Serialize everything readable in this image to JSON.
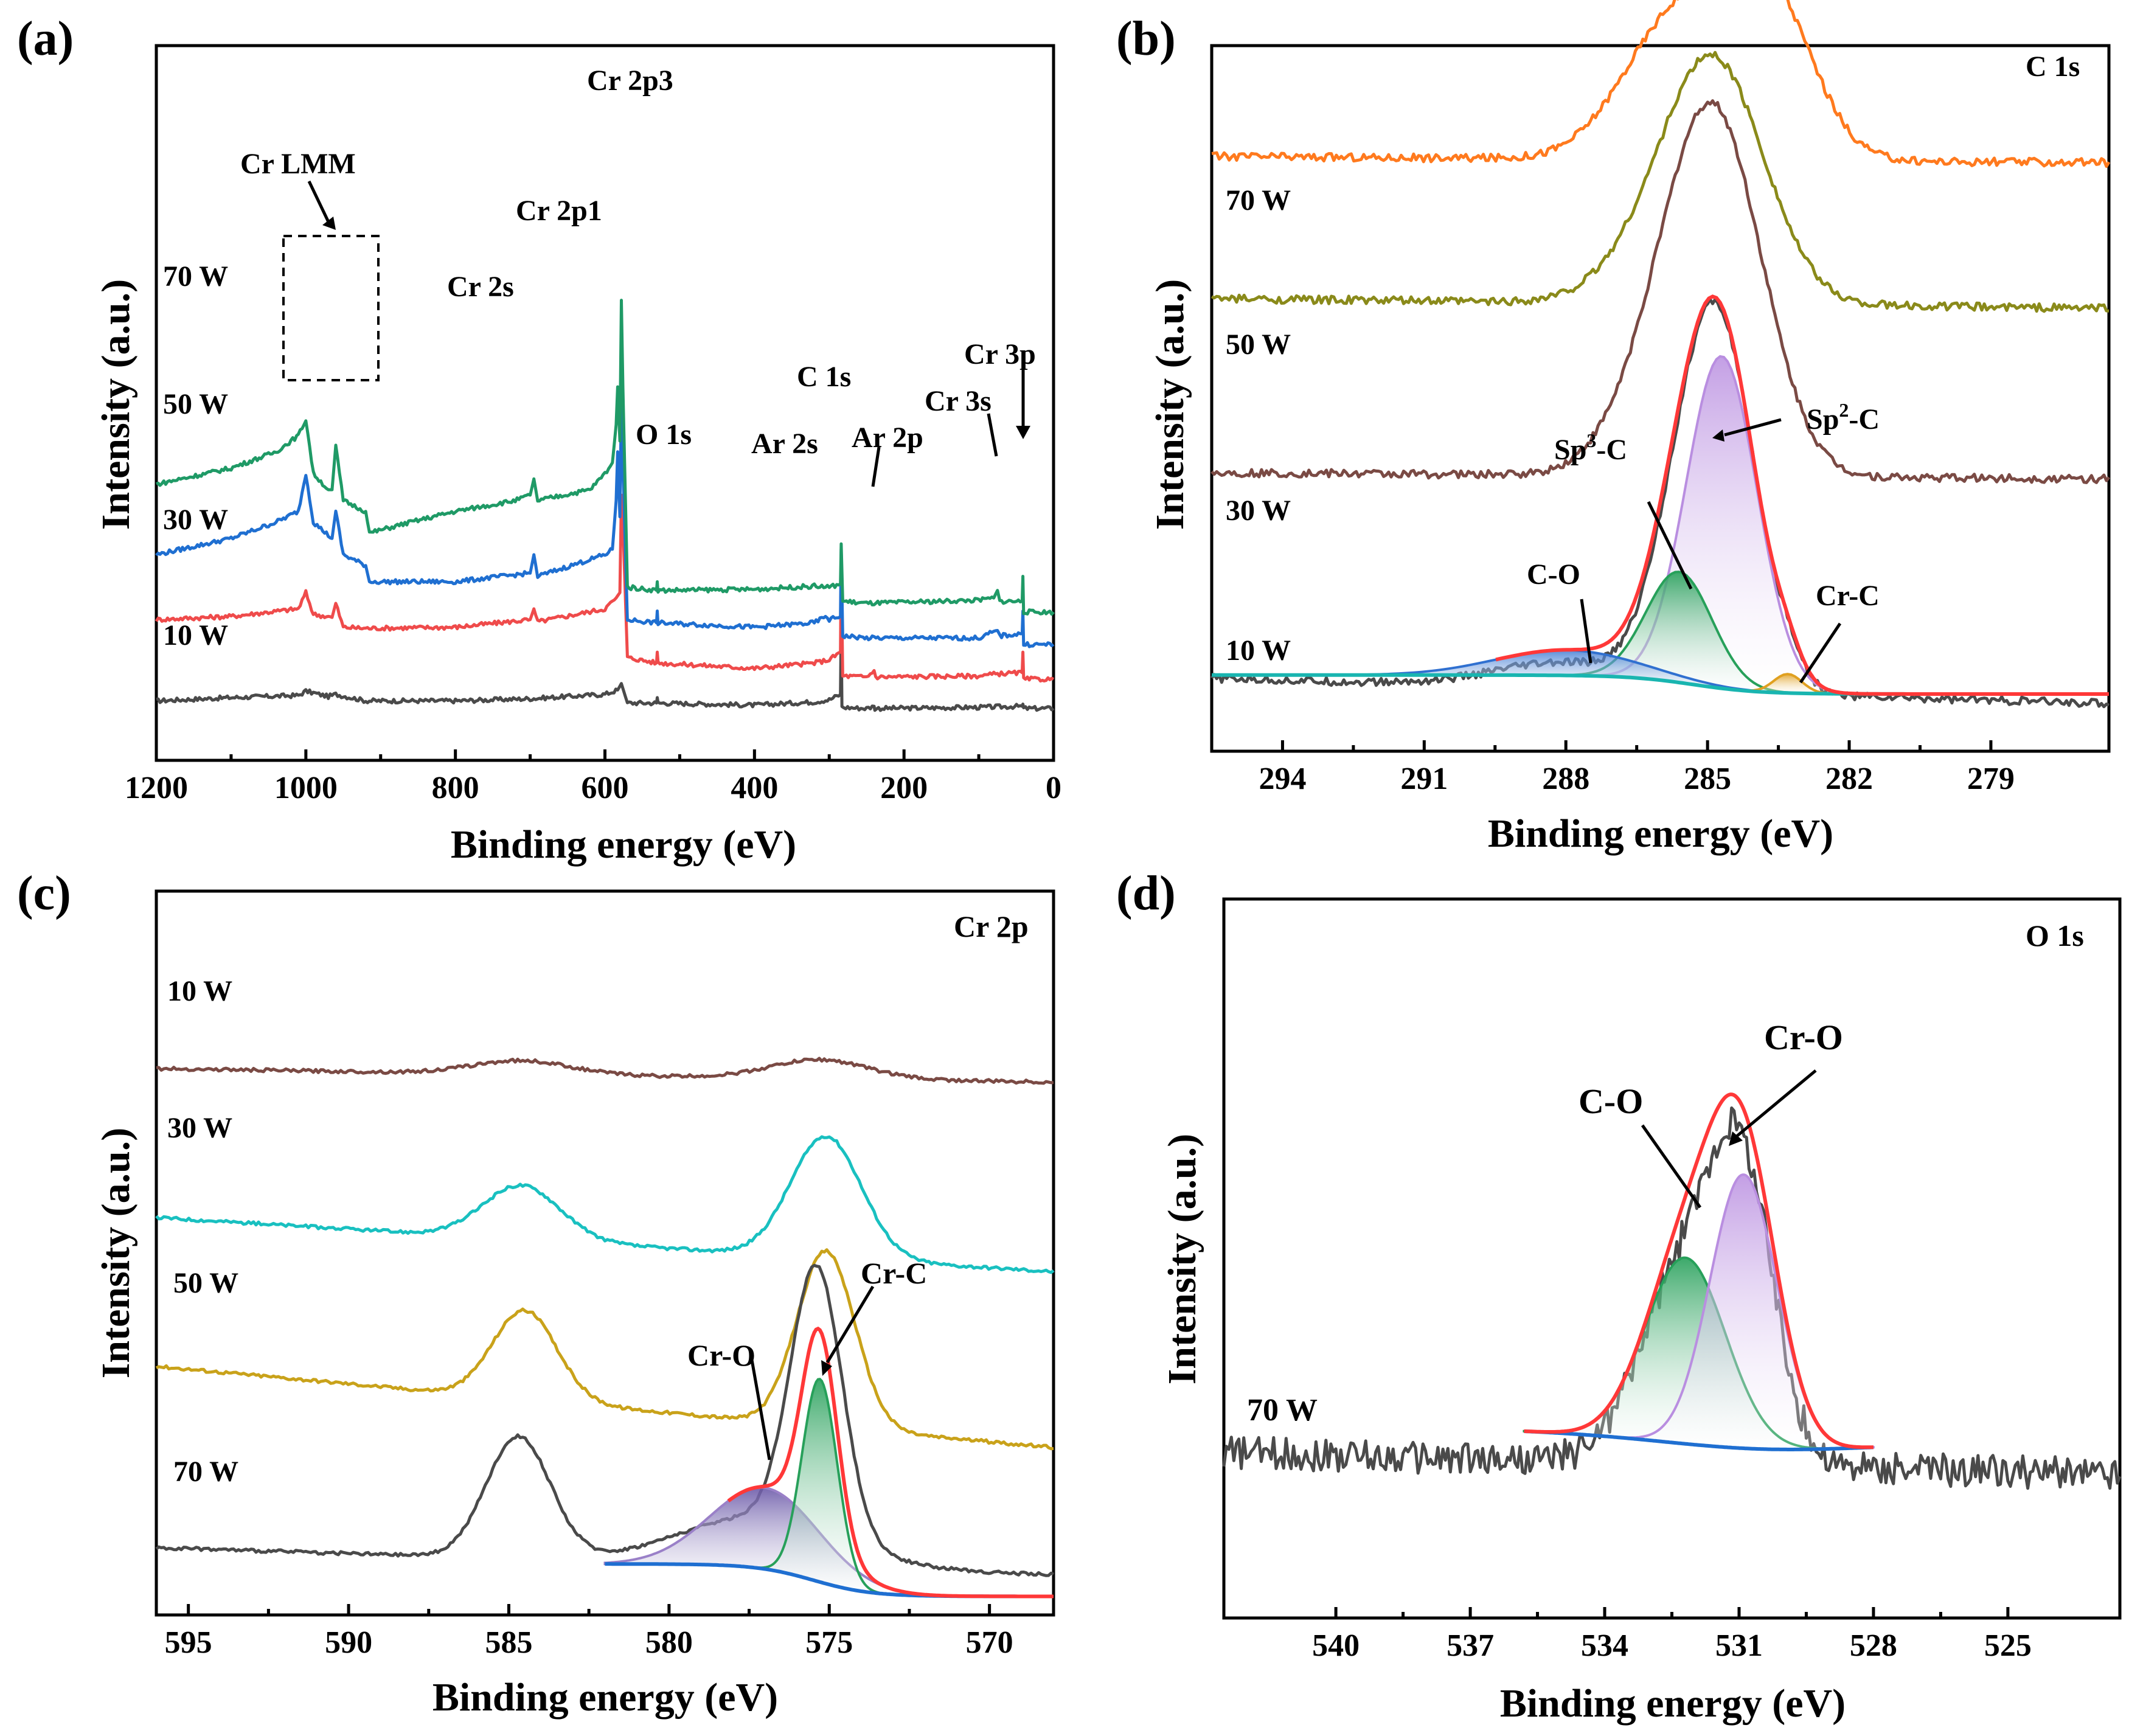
{
  "chart_data": [
    {
      "panel": "(a)",
      "type": "line",
      "title": "",
      "xlabel": "Binding energy (eV)",
      "ylabel": "Intensity (a.u.)",
      "xlim": [
        1200,
        0
      ],
      "xticks": [
        "1200",
        "1000",
        "800",
        "600",
        "400",
        "200",
        "0"
      ],
      "series": [
        {
          "name": "10 W",
          "color": "#4a4a4a",
          "points": [
            [
              1200,
              0.1
            ],
            [
              1100,
              0.13
            ],
            [
              1010,
              0.15
            ],
            [
              1000,
              0.19
            ],
            [
              970,
              0.14
            ],
            [
              960,
              0.16
            ],
            [
              920,
              0.1
            ],
            [
              800,
              0.1
            ],
            [
              700,
              0.12
            ],
            [
              600,
              0.16
            ],
            [
              583,
              0.2
            ],
            [
              578,
              0.26
            ],
            [
              570,
              0.08
            ],
            [
              531,
              0.08
            ],
            [
              530,
              0.13
            ],
            [
              529,
              0.08
            ],
            [
              400,
              0.06
            ],
            [
              320,
              0.09
            ],
            [
              300,
              0.11
            ],
            [
              285,
              0.16
            ],
            [
              284,
              0.8
            ],
            [
              283,
              0.04
            ],
            [
              250,
              0.03
            ],
            [
              240,
              0.05
            ],
            [
              239,
              0.03
            ],
            [
              100,
              0.04
            ],
            [
              42,
              0.05
            ],
            [
              41,
              0.07
            ],
            [
              40,
              0.03
            ],
            [
              0,
              0.03
            ]
          ]
        },
        {
          "name": "30 W",
          "color": "#ef4b4b",
          "points": [
            [
              1200,
              0.85
            ],
            [
              1100,
              0.88
            ],
            [
              1010,
              0.95
            ],
            [
              1000,
              1.1
            ],
            [
              990,
              0.9
            ],
            [
              965,
              0.87
            ],
            [
              960,
              1.0
            ],
            [
              950,
              0.78
            ],
            [
              920,
              0.77
            ],
            [
              800,
              0.78
            ],
            [
              700,
              0.85
            ],
            [
              695,
              0.95
            ],
            [
              690,
              0.83
            ],
            [
              600,
              0.95
            ],
            [
              585,
              1.05
            ],
            [
              580,
              1.1
            ],
            [
              578,
              2.0
            ],
            [
              575,
              1.55
            ],
            [
              570,
              0.5
            ],
            [
              531,
              0.45
            ],
            [
              530,
              0.55
            ],
            [
              529,
              0.45
            ],
            [
              400,
              0.4
            ],
            [
              320,
              0.45
            ],
            [
              300,
              0.48
            ],
            [
              285,
              0.55
            ],
            [
              284,
              1.4
            ],
            [
              282,
              0.33
            ],
            [
              250,
              0.32
            ],
            [
              240,
              0.38
            ],
            [
              238,
              0.32
            ],
            [
              100,
              0.33
            ],
            [
              75,
              0.35
            ],
            [
              42,
              0.36
            ],
            [
              41,
              0.55
            ],
            [
              40,
              0.3
            ],
            [
              0,
              0.3
            ]
          ]
        },
        {
          "name": "50 W",
          "color": "#1f6fd1",
          "points": [
            [
              1200,
              1.45
            ],
            [
              1100,
              1.6
            ],
            [
              1040,
              1.75
            ],
            [
              1010,
              1.85
            ],
            [
              1000,
              2.2
            ],
            [
              990,
              1.75
            ],
            [
              965,
              1.6
            ],
            [
              960,
              1.85
            ],
            [
              950,
              1.45
            ],
            [
              920,
              1.35
            ],
            [
              915,
              1.2
            ],
            [
              800,
              1.2
            ],
            [
              700,
              1.28
            ],
            [
              695,
              1.45
            ],
            [
              690,
              1.25
            ],
            [
              600,
              1.45
            ],
            [
              590,
              1.5
            ],
            [
              585,
              1.95
            ],
            [
              583,
              2.4
            ],
            [
              580,
              1.8
            ],
            [
              578,
              2.9
            ],
            [
              576,
              2.3
            ],
            [
              570,
              0.85
            ],
            [
              531,
              0.82
            ],
            [
              530,
              0.93
            ],
            [
              529,
              0.82
            ],
            [
              400,
              0.78
            ],
            [
              320,
              0.82
            ],
            [
              305,
              0.88
            ],
            [
              300,
              0.85
            ],
            [
              285,
              0.88
            ],
            [
              284,
              1.5
            ],
            [
              282,
              0.7
            ],
            [
              250,
              0.68
            ],
            [
              100,
              0.68
            ],
            [
              75,
              0.75
            ],
            [
              72,
              0.7
            ],
            [
              42,
              0.72
            ],
            [
              41,
              0.93
            ],
            [
              40,
              0.62
            ],
            [
              0,
              0.62
            ]
          ]
        },
        {
          "name": "70 W",
          "color": "#1f9a66",
          "points": [
            [
              1200,
              2.1
            ],
            [
              1100,
              2.25
            ],
            [
              1040,
              2.4
            ],
            [
              1010,
              2.55
            ],
            [
              1000,
              2.7
            ],
            [
              990,
              2.2
            ],
            [
              970,
              2.05
            ],
            [
              965,
              2.05
            ],
            [
              960,
              2.45
            ],
            [
              950,
              1.95
            ],
            [
              920,
              1.85
            ],
            [
              915,
              1.65
            ],
            [
              860,
              1.75
            ],
            [
              800,
              1.85
            ],
            [
              720,
              1.95
            ],
            [
              700,
              2.0
            ],
            [
              695,
              2.15
            ],
            [
              690,
              1.95
            ],
            [
              620,
              2.05
            ],
            [
              600,
              2.2
            ],
            [
              590,
              2.3
            ],
            [
              585,
              2.65
            ],
            [
              583,
              3.0
            ],
            [
              580,
              2.5
            ],
            [
              578,
              3.8
            ],
            [
              576,
              3.0
            ],
            [
              570,
              1.15
            ],
            [
              531,
              1.12
            ],
            [
              530,
              1.2
            ],
            [
              529,
              1.12
            ],
            [
              400,
              1.13
            ],
            [
              320,
              1.16
            ],
            [
              300,
              1.15
            ],
            [
              285,
              1.18
            ],
            [
              284,
              1.55
            ],
            [
              282,
              1.02
            ],
            [
              250,
              1.0
            ],
            [
              100,
              1.03
            ],
            [
              80,
              1.05
            ],
            [
              75,
              1.12
            ],
            [
              72,
              1.02
            ],
            [
              42,
              1.02
            ],
            [
              41,
              1.25
            ],
            [
              40,
              0.92
            ],
            [
              0,
              0.92
            ]
          ]
        }
      ],
      "series_labels": [
        "70 W",
        "50 W",
        "30 W",
        "10 W"
      ],
      "annotations": [
        "Cr LMM",
        "Cr 2p3",
        "Cr 2p1",
        "Cr 2s",
        "O 1s",
        "Ar 2s",
        "Ar 2p",
        "C 1s",
        "Cr 3s",
        "Cr 3p"
      ]
    },
    {
      "panel": "(b)",
      "type": "line",
      "title": "C 1s",
      "xlabel": "Binding energy (eV)",
      "ylabel": "Intensity (a.u.)",
      "xlim": [
        295.5,
        276.5
      ],
      "xticks": [
        "294",
        "291",
        "288",
        "285",
        "282",
        "279"
      ],
      "offsets": {
        "10 W": 0.0,
        "30 W": 0.35,
        "50 W": 0.75,
        "70 W": 1.1
      },
      "series": [
        {
          "name": "10 W",
          "color": "#4a4a4a",
          "baseline": [
            0.0,
            -0.08
          ],
          "peaks": [
            [
              284.7,
              1.05,
              0.75
            ],
            [
              285.6,
              0.35,
              0.7
            ],
            [
              288.0,
              0.08,
              1.5
            ],
            [
              283.3,
              0.06,
              0.3
            ]
          ]
        },
        {
          "name": "30 W",
          "color": "#7a4a44",
          "baseline": [
            0.3,
            0.28
          ],
          "peaks": [
            [
              284.8,
              1.05,
              1.0
            ],
            [
              286.0,
              0.25,
              1.0
            ]
          ]
        },
        {
          "name": "50 W",
          "color": "#8a8a1a",
          "baseline": [
            0.45,
            0.42
          ],
          "peaks": [
            [
              284.8,
              0.7,
              1.05
            ],
            [
              286.0,
              0.15,
              1.1
            ]
          ]
        },
        {
          "name": "70 W",
          "color": "#ff7a1e",
          "baseline": [
            0.55,
            0.53
          ],
          "peaks": [
            [
              285.2,
              0.43,
              1.2
            ],
            [
              283.6,
              0.4,
              0.9
            ],
            [
              286.3,
              0.1,
              1.0
            ]
          ]
        }
      ],
      "components": [
        {
          "name": "Sp2-C",
          "center": 284.7,
          "height": 1.05,
          "width": 0.75,
          "color": "#b98ee0"
        },
        {
          "name": "Sp3-C",
          "center": 285.6,
          "height": 0.35,
          "width": 0.7,
          "color": "#27a05a"
        },
        {
          "name": "C-O",
          "center": 288.0,
          "height": 0.08,
          "width": 1.5,
          "color": "#3070d0"
        },
        {
          "name": "Cr-C",
          "center": 283.3,
          "height": 0.06,
          "width": 0.3,
          "color": "#e0a020"
        }
      ],
      "series_labels": [
        "70 W",
        "50 W",
        "30 W",
        "10 W"
      ],
      "annotations": {
        "sp3_main": "Sp",
        "sp3_sup": "3",
        "sp3_tail": "-C",
        "sp2_main": "Sp",
        "sp2_sup": "2",
        "sp2_tail": "-C",
        "co": "C-O",
        "crc": "Cr-C"
      }
    },
    {
      "panel": "(c)",
      "type": "line",
      "title": "Cr 2p",
      "xlabel": "Binding energy (eV)",
      "ylabel": "Intensity (a.u.)",
      "xlim": [
        596,
        568
      ],
      "xticks": [
        "595",
        "590",
        "585",
        "580",
        "575",
        "570"
      ],
      "offsets": {
        "70 W": 0.0,
        "50 W": 0.75,
        "30 W": 1.3,
        "10 W": 1.85
      },
      "series": [
        {
          "name": "10 W",
          "color": "#7a4a44",
          "baseline": [
            0.0,
            -0.05
          ],
          "peaks": [
            [
              584.6,
              0.05,
              1.5
            ],
            [
              575.3,
              0.07,
              1.5
            ]
          ]
        },
        {
          "name": "30 W",
          "color": "#19c0c0",
          "baseline": [
            0.0,
            -0.2
          ],
          "peaks": [
            [
              584.6,
              0.2,
              1.2
            ],
            [
              575.1,
              0.45,
              1.1
            ]
          ]
        },
        {
          "name": "50 W",
          "color": "#c9a21a",
          "baseline": [
            0.0,
            -0.3
          ],
          "peaks": [
            [
              584.5,
              0.33,
              1.0
            ],
            [
              575.1,
              0.65,
              0.9
            ]
          ]
        },
        {
          "name": "70 W",
          "color": "#4a4a4a",
          "baseline": [
            0.08,
            -0.02
          ],
          "peaks": [
            [
              584.7,
              0.45,
              1.0
            ],
            [
              575.4,
              0.98,
              0.8
            ],
            [
              577.2,
              0.18,
              2.5
            ]
          ]
        }
      ],
      "components": [
        {
          "name": "Cr-C",
          "center": 575.3,
          "height": 0.75,
          "width": 0.55,
          "color": "#27a05a"
        },
        {
          "name": "Cr-O",
          "center": 577.0,
          "height": 0.3,
          "width": 1.7,
          "color": "#9a80c8"
        }
      ],
      "series_labels": [
        "10 W",
        "30 W",
        "50 W",
        "70 W"
      ],
      "annotations": [
        "Cr-O",
        "Cr-C"
      ]
    },
    {
      "panel": "(d)",
      "type": "line",
      "title": "O 1s",
      "xlabel": "Binding energy (eV)",
      "ylabel": "Intensity (a.u.)",
      "xlim": [
        542.5,
        522.5
      ],
      "xticks": [
        "540",
        "537",
        "534",
        "531",
        "528",
        "525"
      ],
      "series": [
        {
          "name": "70 W",
          "color": "#4a4a4a",
          "baseline": [
            0.18,
            0.14
          ],
          "peaks": [
            [
              532.2,
              0.35,
              1.0
            ],
            [
              530.9,
              0.45,
              0.7
            ]
          ]
        }
      ],
      "components": [
        {
          "name": "C-O",
          "center": 532.2,
          "height": 0.34,
          "width": 0.9,
          "color": "#27a05a"
        },
        {
          "name": "Cr-O",
          "center": 530.9,
          "height": 0.5,
          "width": 0.75,
          "color": "#b98ee0"
        }
      ],
      "series_labels": [
        "70 W"
      ],
      "annotations": [
        "C-O",
        "Cr-O"
      ]
    }
  ]
}
